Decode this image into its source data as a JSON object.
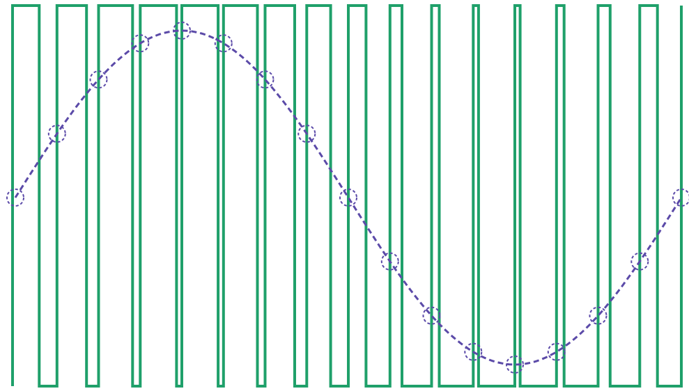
{
  "diagram": {
    "pwm_color": "#1fa06a",
    "sine_color": "#5b4aa8",
    "marker_color": "#5b4aa8",
    "pulse_count": 16,
    "sample_count": 17,
    "sine_cycles": 1
  }
}
